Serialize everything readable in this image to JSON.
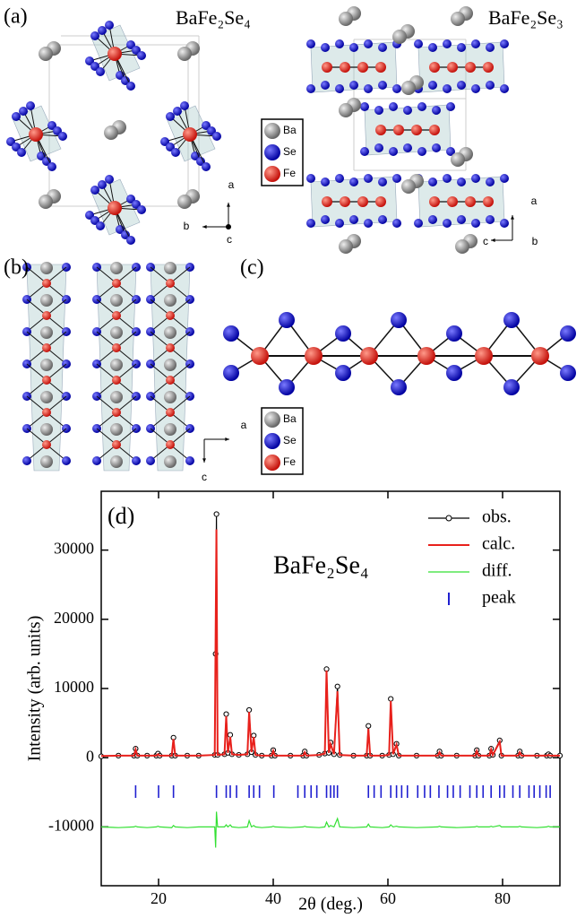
{
  "panels": {
    "a": "(a)",
    "b": "(b)",
    "c": "(c)",
    "d": "(d)"
  },
  "structure_a": {
    "left_formula": "BaFe₂Se₄",
    "right_formula": "BaFe₂Se₃",
    "axes_left": [
      "a",
      "b",
      "c"
    ],
    "axes_right": [
      "a",
      "c",
      "b"
    ]
  },
  "atom_legend": [
    "Ba",
    "Se",
    "Fe"
  ],
  "structure_b": {
    "axes": [
      "a",
      "c"
    ]
  },
  "chart_data": {
    "type": "line",
    "title": "BaFe₂Se₄",
    "xlabel": "2θ (deg.)",
    "ylabel": "Intensity (arb. units)",
    "x": [
      10,
      13,
      15.7,
      16.0,
      16.3,
      18,
      19.6,
      19.9,
      20.2,
      22.3,
      22.6,
      22.9,
      25,
      27,
      29.8,
      29.95,
      30.1,
      30.3,
      31.5,
      31.8,
      32.1,
      32.5,
      32.8,
      34,
      35.5,
      35.8,
      36.2,
      36.6,
      36.9,
      38,
      39.7,
      40.0,
      40.3,
      43,
      45.2,
      45.5,
      45.8,
      48,
      49.0,
      49.3,
      49.7,
      50.0,
      50.6,
      51.2,
      51.6,
      54,
      56.3,
      56.6,
      56.9,
      59,
      60.2,
      60.5,
      60.9,
      61.5,
      61.9,
      65,
      68.7,
      69.0,
      69.3,
      72,
      75.2,
      75.5,
      75.8,
      77.7,
      78.0,
      78.3,
      79.5,
      79.8,
      82.7,
      83.0,
      83.3,
      86,
      87.7,
      88.0,
      88.3,
      90
    ],
    "series": [
      {
        "name": "obs.",
        "color": "#000000",
        "marker": "circle",
        "values": [
          200,
          300,
          300,
          1300,
          300,
          300,
          300,
          600,
          300,
          300,
          2900,
          300,
          300,
          300,
          400,
          15000,
          35200,
          400,
          500,
          6300,
          700,
          3300,
          500,
          400,
          500,
          6900,
          800,
          3200,
          400,
          300,
          300,
          1100,
          300,
          300,
          300,
          900,
          300,
          400,
          600,
          12800,
          700,
          2200,
          500,
          10300,
          400,
          300,
          300,
          4600,
          300,
          300,
          400,
          8500,
          500,
          2000,
          300,
          300,
          300,
          900,
          300,
          300,
          300,
          1100,
          300,
          300,
          1300,
          400,
          2500,
          300,
          300,
          900,
          300,
          300,
          300,
          500,
          300,
          300
        ]
      },
      {
        "name": "calc.",
        "color": "#e8211c",
        "values": [
          250,
          300,
          300,
          1200,
          300,
          300,
          300,
          500,
          300,
          300,
          2700,
          300,
          300,
          300,
          400,
          18000,
          33000,
          400,
          500,
          6000,
          700,
          3000,
          500,
          400,
          500,
          6600,
          800,
          3000,
          400,
          300,
          300,
          1000,
          300,
          300,
          300,
          800,
          300,
          400,
          600,
          12600,
          700,
          2000,
          500,
          9600,
          400,
          300,
          300,
          4200,
          300,
          300,
          400,
          8200,
          500,
          1900,
          300,
          300,
          300,
          800,
          300,
          300,
          300,
          1000,
          300,
          300,
          1200,
          400,
          2300,
          300,
          300,
          800,
          300,
          300,
          300,
          400,
          300,
          300
        ]
      },
      {
        "name": "diff.",
        "color": "#33e033",
        "values": [
          -10000,
          -10100,
          -10000,
          -9900,
          -10000,
          -10100,
          -10000,
          -9900,
          -10000,
          -10100,
          -9800,
          -10000,
          -10100,
          -10000,
          -10000,
          -13000,
          -7800,
          -10000,
          -10000,
          -9700,
          -10000,
          -9700,
          -10000,
          -10100,
          -10000,
          -9100,
          -10000,
          -9800,
          -10000,
          -10100,
          -10000,
          -9900,
          -10000,
          -10100,
          -10000,
          -9900,
          -10000,
          -10100,
          -10000,
          -9300,
          -10000,
          -9800,
          -10000,
          -8800,
          -10000,
          -10100,
          -10000,
          -9600,
          -10000,
          -10100,
          -10000,
          -9700,
          -10000,
          -9900,
          -10000,
          -10100,
          -10000,
          -9900,
          -10000,
          -10100,
          -10000,
          -9900,
          -10000,
          -10000,
          -9900,
          -10000,
          -9800,
          -10000,
          -10000,
          -9900,
          -10000,
          -10100,
          -10000,
          -9900,
          -10000,
          -10000
        ]
      }
    ],
    "peaks": {
      "name": "peak",
      "color": "#1f1fd0",
      "x": [
        16,
        20,
        22.6,
        30.1,
        31.8,
        32.5,
        33.6,
        35.8,
        36.6,
        37.6,
        40.1,
        44.3,
        45.5,
        46.6,
        47.6,
        49.3,
        50,
        50.6,
        51.2,
        56.6,
        57.6,
        58.8,
        60.5,
        61.5,
        62.4,
        63.4,
        65.2,
        66.4,
        67.4,
        68.9,
        70.4,
        71.4,
        72.6,
        74.3,
        75.5,
        76.6,
        78,
        79.5,
        80.3,
        81.8,
        83,
        84.6,
        85.5,
        86.5,
        87.6,
        88.3
      ]
    },
    "xlim": [
      10,
      90
    ],
    "ylim": [
      -18500,
      38500
    ],
    "xticks": [
      20,
      40,
      60,
      80
    ],
    "yticks": [
      -10000,
      0,
      10000,
      20000,
      30000
    ]
  }
}
